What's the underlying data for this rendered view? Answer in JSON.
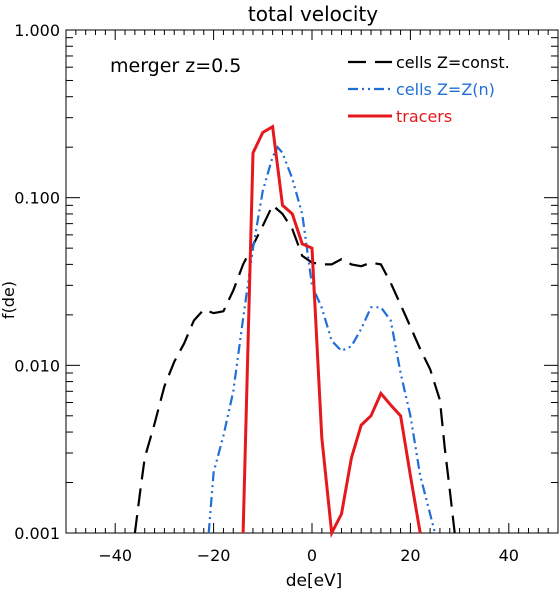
{
  "chart_data": {
    "type": "line",
    "title": "total velocity",
    "xlabel": "de[eV]",
    "ylabel": "f(de)",
    "xlim": [
      -50,
      50
    ],
    "ylim": [
      0.001,
      1.0
    ],
    "yscale": "log",
    "grid": false,
    "legend_position": "top-right",
    "annotation": "merger z=0.5",
    "x_ticks": [
      -40,
      -20,
      0,
      20,
      40
    ],
    "x_tick_labels": [
      "−40",
      "−20",
      "0",
      "20",
      "40"
    ],
    "y_ticks": [
      0.001,
      0.01,
      0.1,
      1.0
    ],
    "y_tick_labels": [
      "0.001",
      "0.010",
      "0.100",
      "1.000"
    ],
    "series": [
      {
        "name": "cells Z=const.",
        "color": "#000000",
        "dash": "long-dash",
        "points": [
          [
            -36,
            0.001
          ],
          [
            -35,
            0.0017
          ],
          [
            -34,
            0.0028
          ],
          [
            -32,
            0.0045
          ],
          [
            -30,
            0.0075
          ],
          [
            -28,
            0.0105
          ],
          [
            -26,
            0.0135
          ],
          [
            -24,
            0.0185
          ],
          [
            -22,
            0.0215
          ],
          [
            -20,
            0.0205
          ],
          [
            -18,
            0.021
          ],
          [
            -16,
            0.028
          ],
          [
            -14,
            0.04
          ],
          [
            -12,
            0.052
          ],
          [
            -10,
            0.068
          ],
          [
            -8,
            0.09
          ],
          [
            -6,
            0.08
          ],
          [
            -4,
            0.065
          ],
          [
            -2,
            0.045
          ],
          [
            0,
            0.041
          ],
          [
            2,
            0.04
          ],
          [
            4,
            0.04
          ],
          [
            6,
            0.043
          ],
          [
            8,
            0.04
          ],
          [
            10,
            0.039
          ],
          [
            12,
            0.041
          ],
          [
            14,
            0.04
          ],
          [
            16,
            0.031
          ],
          [
            18,
            0.023
          ],
          [
            20,
            0.017
          ],
          [
            22,
            0.0125
          ],
          [
            24,
            0.0095
          ],
          [
            26,
            0.0062
          ],
          [
            27,
            0.0032
          ],
          [
            28,
            0.0018
          ],
          [
            29,
            0.001
          ]
        ]
      },
      {
        "name": "cells Z=Z(n)",
        "color": "#1f6fd6",
        "dash": "dash-dot-dot",
        "points": [
          [
            -21,
            0.001
          ],
          [
            -20,
            0.0023
          ],
          [
            -18,
            0.0038
          ],
          [
            -16,
            0.007
          ],
          [
            -14,
            0.019
          ],
          [
            -12,
            0.05
          ],
          [
            -10,
            0.11
          ],
          [
            -8,
            0.175
          ],
          [
            -7,
            0.2
          ],
          [
            -6,
            0.185
          ],
          [
            -4,
            0.13
          ],
          [
            -2,
            0.08
          ],
          [
            0,
            0.03
          ],
          [
            2,
            0.022
          ],
          [
            4,
            0.014
          ],
          [
            6,
            0.0122
          ],
          [
            8,
            0.013
          ],
          [
            10,
            0.0165
          ],
          [
            12,
            0.0222
          ],
          [
            14,
            0.0222
          ],
          [
            16,
            0.0185
          ],
          [
            18,
            0.009
          ],
          [
            20,
            0.005
          ],
          [
            22,
            0.0022
          ],
          [
            24,
            0.0013
          ],
          [
            25,
            0.001
          ]
        ]
      },
      {
        "name": "tracers",
        "color": "#e5191d",
        "dash": "solid",
        "points": [
          [
            -14,
            0.001
          ],
          [
            -12,
            0.185
          ],
          [
            -10,
            0.245
          ],
          [
            -8,
            0.265
          ],
          [
            -6,
            0.09
          ],
          [
            -4,
            0.08
          ],
          [
            -2,
            0.053
          ],
          [
            0,
            0.05
          ],
          [
            2,
            0.0037
          ],
          [
            4,
            0.001
          ],
          [
            6,
            0.0013
          ],
          [
            8,
            0.0028
          ],
          [
            10,
            0.0044
          ],
          [
            12,
            0.005
          ],
          [
            14,
            0.0068
          ],
          [
            16,
            0.0058
          ],
          [
            18,
            0.005
          ],
          [
            20,
            0.0022
          ],
          [
            22,
            0.001
          ]
        ]
      }
    ]
  }
}
